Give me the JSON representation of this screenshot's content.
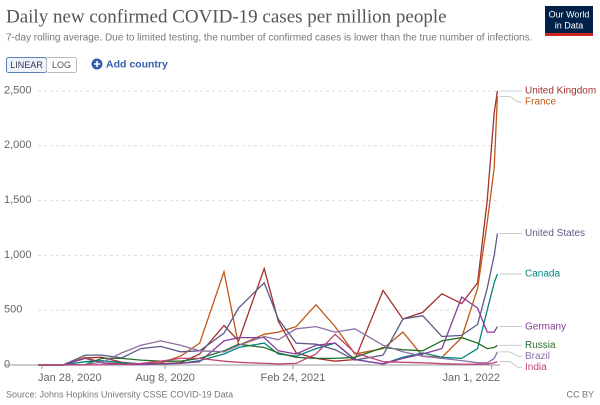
{
  "chart_data": {
    "type": "line",
    "title": "Daily new confirmed COVID-19 cases per million people",
    "subtitle": "7-day rolling average. Due to limited testing, the number of confirmed cases is lower than the true number of infections.",
    "log_scale": false,
    "grid": true,
    "x": [
      "2020-01-22",
      "2020-03-01",
      "2020-04-05",
      "2020-05-01",
      "2020-06-01",
      "2020-07-01",
      "2020-08-01",
      "2020-09-01",
      "2020-10-01",
      "2020-11-08",
      "2020-12-01",
      "2021-01-10",
      "2021-02-01",
      "2021-03-01",
      "2021-04-01",
      "2021-05-01",
      "2021-06-01",
      "2021-07-15",
      "2021-08-15",
      "2021-09-15",
      "2021-10-15",
      "2021-11-15",
      "2021-12-10",
      "2021-12-25",
      "2022-01-05",
      "2022-01-10"
    ],
    "xlim": [
      "2020-01-22",
      "2022-01-14"
    ],
    "xticks": [
      {
        "value": "2020-01-28",
        "label": "Jan 28, 2020"
      },
      {
        "value": "2020-08-08",
        "label": "Aug 8, 2020"
      },
      {
        "value": "2021-02-24",
        "label": "Feb 24, 2021"
      },
      {
        "value": "2022-01-01",
        "label": "Jan 1, 2022"
      }
    ],
    "ylim": [
      0,
      2500
    ],
    "yticks": [
      0,
      500,
      {
        "value": 1000,
        "label": "1,000"
      },
      {
        "value": 1500,
        "label": "1,500"
      },
      {
        "value": 2000,
        "label": "2,000"
      },
      {
        "value": 2500,
        "label": "2,500"
      }
    ],
    "series": [
      {
        "name": "United Kingdom",
        "color": "#a2302e",
        "values": [
          0,
          0,
          65,
          70,
          25,
          10,
          12,
          20,
          100,
          360,
          220,
          880,
          400,
          110,
          60,
          35,
          50,
          680,
          420,
          480,
          650,
          560,
          750,
          1500,
          2300,
          2500
        ]
      },
      {
        "name": "France",
        "color": "#c05917",
        "values": [
          0,
          0,
          70,
          20,
          10,
          10,
          20,
          80,
          200,
          850,
          180,
          280,
          300,
          350,
          550,
          350,
          100,
          150,
          300,
          80,
          70,
          250,
          700,
          1300,
          1800,
          2450
        ]
      },
      {
        "name": "United States",
        "color": "#5b5b8a",
        "values": [
          0,
          0,
          90,
          90,
          65,
          150,
          170,
          120,
          130,
          290,
          520,
          750,
          420,
          200,
          190,
          140,
          45,
          90,
          420,
          450,
          260,
          270,
          370,
          700,
          1000,
          1200
        ]
      },
      {
        "name": "Canada",
        "color": "#00847e",
        "values": [
          0,
          0,
          30,
          40,
          20,
          10,
          10,
          15,
          40,
          100,
          160,
          200,
          100,
          80,
          150,
          200,
          50,
          10,
          70,
          110,
          70,
          60,
          150,
          500,
          750,
          830
        ]
      },
      {
        "name": "Germany",
        "color": "#883c9c",
        "values": [
          0,
          0,
          60,
          20,
          5,
          5,
          10,
          15,
          30,
          220,
          250,
          250,
          130,
          100,
          180,
          200,
          50,
          10,
          60,
          100,
          150,
          620,
          520,
          300,
          300,
          350
        ]
      },
      {
        "name": "Russia",
        "color": "#286f2a",
        "values": [
          0,
          0,
          5,
          60,
          60,
          45,
          35,
          35,
          60,
          130,
          190,
          160,
          110,
          70,
          60,
          60,
          70,
          160,
          140,
          130,
          220,
          250,
          200,
          150,
          160,
          180
        ]
      },
      {
        "name": "Brazil",
        "color": "#8c6fa6",
        "values": [
          0,
          0,
          5,
          25,
          110,
          180,
          220,
          180,
          130,
          120,
          180,
          260,
          230,
          330,
          350,
          300,
          330,
          180,
          120,
          80,
          60,
          40,
          20,
          20,
          60,
          120
        ]
      },
      {
        "name": "India",
        "color": "#c2447a",
        "values": [
          0,
          0,
          0,
          2,
          5,
          15,
          35,
          60,
          60,
          35,
          25,
          15,
          10,
          15,
          100,
          280,
          110,
          30,
          25,
          20,
          12,
          8,
          6,
          8,
          20,
          30
        ]
      }
    ],
    "source": "Source: Johns Hopkins University CSSE COVID-19 Data",
    "license": "CC BY"
  },
  "controls": {
    "linear": "LINEAR",
    "log": "LOG",
    "add_country": "Add country"
  },
  "logo": [
    "Our World",
    "in Data"
  ]
}
